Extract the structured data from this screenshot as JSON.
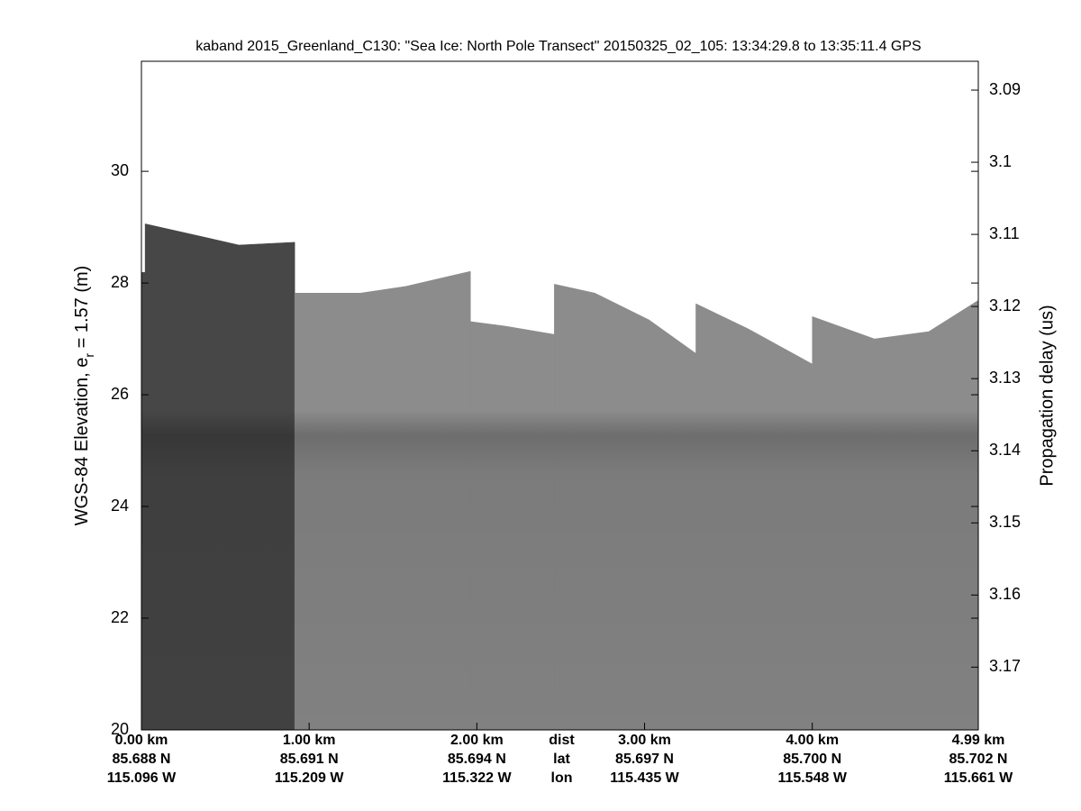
{
  "chart_data": {
    "type": "echogram",
    "title": "kaband 2015_Greenland_C130: \"Sea Ice: North Pole Transect\"  20150325_02_105: 13:34:29.8 to 13:35:11.4 GPS",
    "y_label": [
      "WGS-84 Elevation, e",
      "r",
      " = 1.57 (m)"
    ],
    "y2_label": "Propagation delay (us)",
    "xlim": [
      0,
      4.99
    ],
    "xticks": [
      {
        "value": 0,
        "label": "0.00 km"
      },
      {
        "value": 1,
        "label": "1.00 km"
      },
      {
        "value": 2,
        "label": "2.00 km"
      },
      {
        "value": 3,
        "label": "3.00 km"
      },
      {
        "value": 4,
        "label": "4.00 km"
      },
      {
        "value": 4.99,
        "label": "4.99 km"
      }
    ],
    "x_lat_labels": [
      "85.688 N",
      "85.691 N",
      "85.694 N",
      "85.697 N",
      "85.700 N",
      "85.702 N"
    ],
    "x_lon_labels": [
      "115.096 W",
      "115.209 W",
      "115.322 W",
      "115.435 W",
      "115.548 W",
      "115.661 W"
    ],
    "x_row_labels": [
      "dist",
      "lat",
      "lon"
    ],
    "ylim": [
      20,
      31.97
    ],
    "yticks": [
      20,
      22,
      24,
      26,
      28,
      30
    ],
    "y2lim": [
      3.1787,
      3.086
    ],
    "y2ticks": [
      3.09,
      3.1,
      3.11,
      3.12,
      3.13,
      3.14,
      3.15,
      3.16,
      3.17
    ],
    "series": [
      {
        "color": "#474747",
        "x": [
          0,
          0.022,
          null,
          0.022,
          0.392,
          0.581,
          0.914
        ],
        "values": [
          28.19,
          28.19,
          null,
          29.06,
          28.81,
          28.68,
          28.73
        ]
      },
      {
        "color": "#8c8c8c",
        "x": [
          0.914,
          1.306,
          1.575,
          1.962,
          null,
          1.962,
          2.167,
          2.462,
          null,
          2.462,
          2.704,
          3.027,
          3.306,
          null,
          3.306,
          3.618,
          4.0,
          null,
          4.0,
          4.371,
          4.694,
          4.99
        ],
        "values": [
          27.82,
          27.82,
          27.94,
          28.21,
          null,
          27.31,
          27.23,
          27.08,
          null,
          27.98,
          27.82,
          27.34,
          26.74,
          null,
          27.63,
          27.18,
          26.55,
          null,
          27.4,
          27.0,
          27.13,
          27.69
        ]
      }
    ]
  }
}
